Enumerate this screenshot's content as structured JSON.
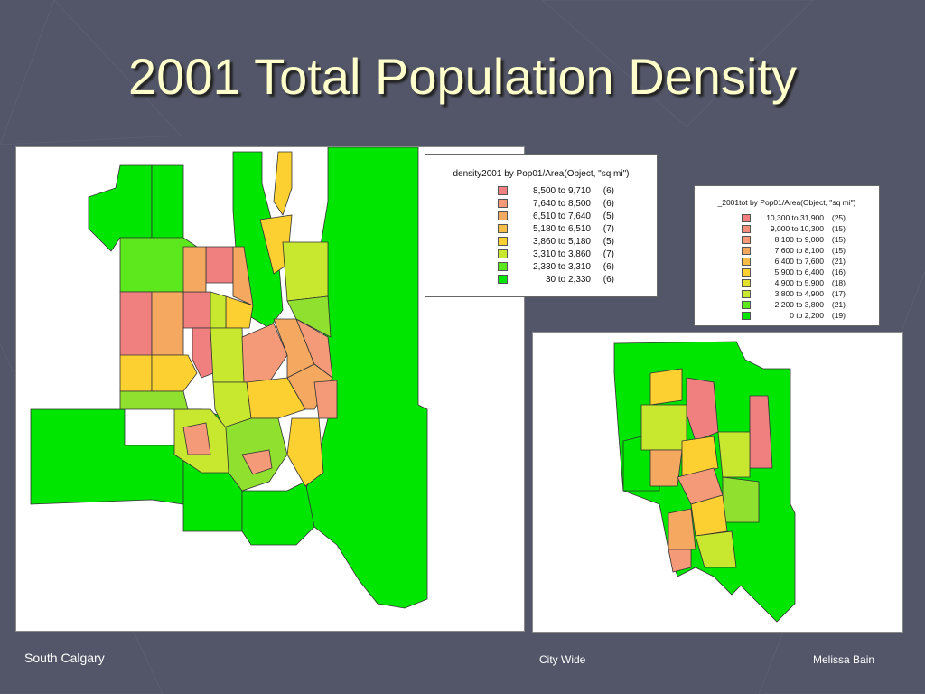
{
  "title": "2001 Total Population Density",
  "maps": [
    {
      "legend": {
        "title": "density2001 by Pop01/Area(Object, \"sq mi\")",
        "entries": [
          {
            "range": "8,500 to 9,710",
            "count": "(6)",
            "color": "#f08080"
          },
          {
            "range": "7,640 to 8,500",
            "count": "(6)",
            "color": "#f49a78"
          },
          {
            "range": "6,510 to 7,640",
            "count": "(5)",
            "color": "#f5a860"
          },
          {
            "range": "5,180 to 6,510",
            "count": "(7)",
            "color": "#f8bc48"
          },
          {
            "range": "3,860 to 5,180",
            "count": "(5)",
            "color": "#fcd030"
          },
          {
            "range": "3,310 to 3,860",
            "count": "(7)",
            "color": "#c8e830"
          },
          {
            "range": "2,330 to 3,310",
            "count": "(6)",
            "color": "#5de81e"
          },
          {
            "range": "30 to 2,330",
            "count": "(6)",
            "color": "#00e600"
          }
        ]
      }
    },
    {
      "legend": {
        "title": "_2001tot by Pop01/Area(Object, \"sq mi\")",
        "entries": [
          {
            "range": "10,300 to 31,900",
            "count": "(25)",
            "color": "#f08080"
          },
          {
            "range": "9,000 to 10,300",
            "count": "(15)",
            "color": "#f28c7c"
          },
          {
            "range": "8,100 to 9,000",
            "count": "(15)",
            "color": "#f49a78"
          },
          {
            "range": "7,600 to 8,100",
            "count": "(15)",
            "color": "#f5a860"
          },
          {
            "range": "6,400 to 7,600",
            "count": "(21)",
            "color": "#f8bc48"
          },
          {
            "range": "5,900 to 6,400",
            "count": "(16)",
            "color": "#fcd030"
          },
          {
            "range": "4,900 to 5,900",
            "count": "(18)",
            "color": "#e4e030"
          },
          {
            "range": "3,800 to 4,900",
            "count": "(17)",
            "color": "#c8e830"
          },
          {
            "range": "2,200 to 3,800",
            "count": "(21)",
            "color": "#5de81e"
          },
          {
            "range": "0 to 2,200",
            "count": "(19)",
            "color": "#00e600"
          }
        ]
      }
    }
  ],
  "footer": {
    "left": "South Calgary",
    "center": "City Wide",
    "right": "Melissa Bain"
  }
}
